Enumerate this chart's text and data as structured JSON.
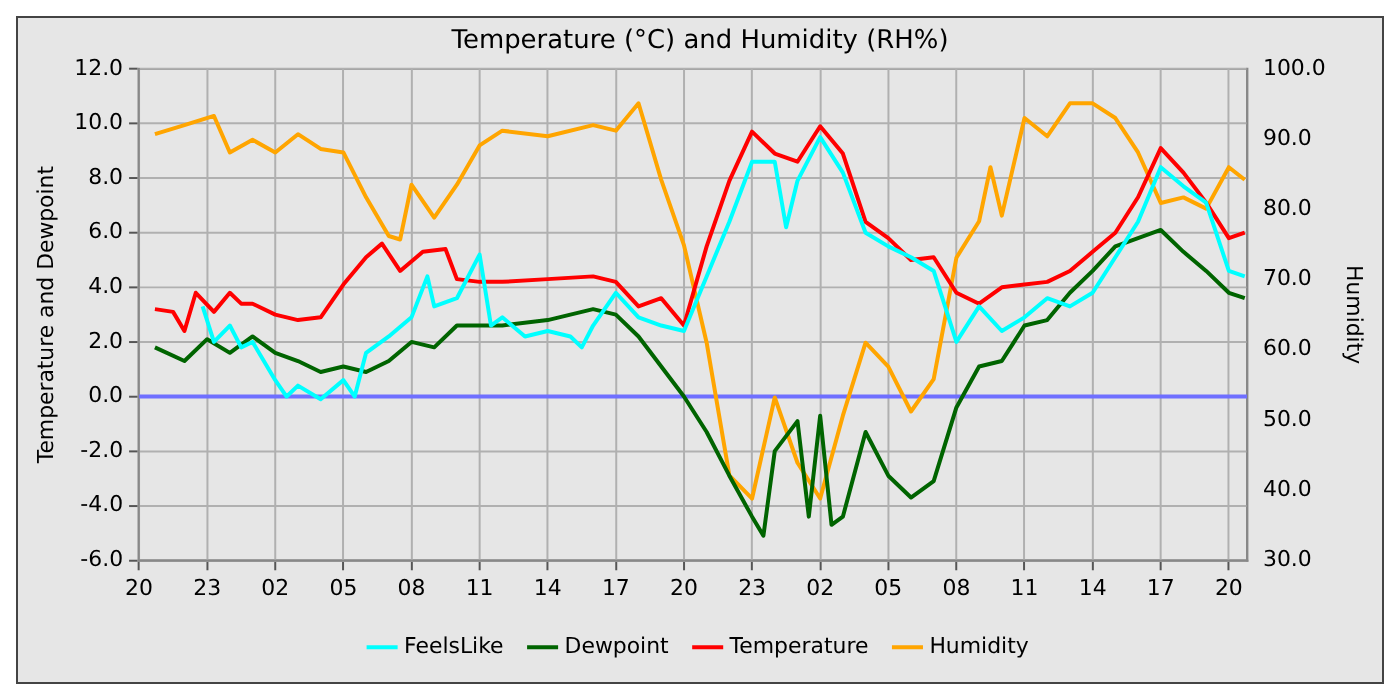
{
  "chart_data": {
    "type": "line",
    "title": "Temperature (°C) and Humidity (RH%)",
    "ylabel": "Temperature and Dewpoint",
    "y2label": "Humidity",
    "xlim": [
      "--01-01T20:00",
      "--01-03T20:48"
    ],
    "xticks": [
      {
        "value": "--01-01T20:00",
        "label": "20"
      },
      {
        "value": "--01-01T23:00",
        "label": "23"
      },
      {
        "value": "--01-02T02:00",
        "label": "02"
      },
      {
        "value": "--01-02T05:00",
        "label": "05"
      },
      {
        "value": "--01-02T08:00",
        "label": "08"
      },
      {
        "value": "--01-02T11:00",
        "label": "11"
      },
      {
        "value": "--01-02T14:00",
        "label": "14"
      },
      {
        "value": "--01-02T17:00",
        "label": "17"
      },
      {
        "value": "--01-02T20:00",
        "label": "20"
      },
      {
        "value": "--01-02T23:00",
        "label": "23"
      },
      {
        "value": "--01-03T02:00",
        "label": "02"
      },
      {
        "value": "--01-03T05:00",
        "label": "05"
      },
      {
        "value": "--01-03T08:00",
        "label": "08"
      },
      {
        "value": "--01-03T11:00",
        "label": "11"
      },
      {
        "value": "--01-03T14:00",
        "label": "14"
      },
      {
        "value": "--01-03T17:00",
        "label": "17"
      },
      {
        "value": "--01-03T20:00",
        "label": "20"
      }
    ],
    "ylim": [
      -6,
      12
    ],
    "yticks": [
      {
        "value": -6,
        "label": "-6.0"
      },
      {
        "value": -4,
        "label": "-4.0"
      },
      {
        "value": -2,
        "label": "-2.0"
      },
      {
        "value": 0,
        "label": "0.0"
      },
      {
        "value": 2,
        "label": "2.0"
      },
      {
        "value": 4,
        "label": "4.0"
      },
      {
        "value": 6,
        "label": "6.0"
      },
      {
        "value": 8,
        "label": "8.0"
      },
      {
        "value": 10,
        "label": "10.0"
      },
      {
        "value": 12,
        "label": "12.0"
      }
    ],
    "y2lim": [
      30,
      100
    ],
    "y2ticks": [
      {
        "value": 30,
        "label": "30.0"
      },
      {
        "value": 40,
        "label": "40.0"
      },
      {
        "value": 50,
        "label": "50.0"
      },
      {
        "value": 60,
        "label": "60.0"
      },
      {
        "value": 70,
        "label": "70.0"
      },
      {
        "value": 80,
        "label": "80.0"
      },
      {
        "value": 90,
        "label": "90.0"
      },
      {
        "value": 100,
        "label": "100.0"
      }
    ],
    "grid": true,
    "legend": "bottom",
    "marker": "none",
    "ref_lines": [
      {
        "axis": "y",
        "value": 0,
        "color": "#6f6fff"
      }
    ],
    "series": [
      {
        "name": "FeelsLike",
        "color": "#00ffff",
        "x": [
          "--01-01T22:48",
          "--01-01T23:18",
          "--01-02T00:00",
          "--01-02T00:30",
          "--01-02T01:00",
          "--01-02T02:00",
          "--01-02T02:30",
          "--01-02T03:00",
          "--01-02T04:00",
          "--01-02T05:00",
          "--01-02T05:30",
          "--01-02T06:00",
          "--01-02T07:00",
          "--01-02T08:00",
          "--01-02T08:42",
          "--01-02T09:00",
          "--01-02T10:00",
          "--01-02T11:00",
          "--01-02T11:30",
          "--01-02T12:00",
          "--01-02T13:00",
          "--01-02T14:00",
          "--01-02T15:00",
          "--01-02T15:30",
          "--01-02T16:00",
          "--01-02T17:00",
          "--01-02T18:00",
          "--01-02T19:00",
          "--01-02T20:00",
          "--01-02T21:00",
          "--01-02T22:00",
          "--01-02T23:00",
          "--01-03T00:00",
          "--01-03T00:30",
          "--01-03T01:00",
          "--01-03T02:00",
          "--01-03T03:00",
          "--01-03T04:00",
          "--01-03T05:00",
          "--01-03T06:00",
          "--01-03T07:00",
          "--01-03T08:00",
          "--01-03T09:00",
          "--01-03T10:00",
          "--01-03T11:00",
          "--01-03T12:00",
          "--01-03T13:00",
          "--01-03T14:00",
          "--01-03T15:00",
          "--01-03T16:00",
          "--01-03T17:00",
          "--01-03T18:00",
          "--01-03T19:00",
          "--01-03T20:00",
          "--01-03T20:42"
        ],
        "values": [
          3.3,
          2.0,
          2.6,
          1.8,
          2.0,
          0.6,
          0,
          0.4,
          -0.1,
          0.6,
          0,
          1.6,
          2.2,
          2.9,
          4.4,
          3.3,
          3.6,
          5.2,
          2.6,
          2.9,
          2.2,
          2.4,
          2.2,
          1.8,
          2.6,
          3.8,
          2.9,
          2.6,
          2.4,
          4.4,
          6.4,
          8.6,
          8.6,
          6.2,
          7.9,
          9.5,
          8.2,
          6.0,
          5.5,
          5.1,
          4.6,
          2.0,
          3.3,
          2.4,
          2.9,
          3.6,
          3.3,
          3.8,
          5.1,
          6.4,
          8.4,
          7.7,
          7.1,
          4.6,
          4.4
        ]
      },
      {
        "name": "Dewpoint",
        "color": "#006400",
        "x": [
          "--01-01T20:42",
          "--01-01T22:00",
          "--01-01T23:00",
          "--01-02T00:00",
          "--01-02T01:00",
          "--01-02T02:00",
          "--01-02T03:00",
          "--01-02T04:00",
          "--01-02T05:00",
          "--01-02T06:00",
          "--01-02T07:00",
          "--01-02T08:00",
          "--01-02T09:00",
          "--01-02T10:00",
          "--01-02T11:00",
          "--01-02T12:00",
          "--01-02T14:00",
          "--01-02T16:00",
          "--01-02T17:00",
          "--01-02T18:00",
          "--01-02T19:00",
          "--01-02T20:00",
          "--01-02T21:00",
          "--01-02T22:00",
          "--01-02T23:00",
          "--01-02T23:30",
          "--01-03T00:00",
          "--01-03T01:00",
          "--01-03T01:30",
          "--01-03T02:00",
          "--01-03T02:30",
          "--01-03T03:00",
          "--01-03T04:00",
          "--01-03T05:00",
          "--01-03T06:00",
          "--01-03T07:00",
          "--01-03T08:00",
          "--01-03T09:00",
          "--01-03T10:00",
          "--01-03T11:00",
          "--01-03T12:00",
          "--01-03T13:00",
          "--01-03T14:00",
          "--01-03T15:00",
          "--01-03T16:00",
          "--01-03T17:00",
          "--01-03T18:00",
          "--01-03T19:00",
          "--01-03T20:00",
          "--01-03T20:42"
        ],
        "values": [
          1.8,
          1.3,
          2.1,
          1.6,
          2.2,
          1.6,
          1.3,
          0.9,
          1.1,
          0.9,
          1.3,
          2.0,
          1.8,
          2.6,
          2.6,
          2.6,
          2.8,
          3.2,
          3.0,
          2.2,
          1.1,
          0,
          -1.3,
          -2.9,
          -4.4,
          -5.1,
          -2.0,
          -0.9,
          -4.4,
          -0.7,
          -4.7,
          -4.4,
          -1.3,
          -2.9,
          -3.7,
          -3.1,
          -0.4,
          1.1,
          1.3,
          2.6,
          2.8,
          3.8,
          4.6,
          5.5,
          5.8,
          6.1,
          5.3,
          4.6,
          3.8,
          3.6
        ]
      },
      {
        "name": "Temperature",
        "color": "#ff0000",
        "x": [
          "--01-01T20:42",
          "--01-01T21:30",
          "--01-01T22:00",
          "--01-01T22:30",
          "--01-01T23:18",
          "--01-02T00:00",
          "--01-02T00:30",
          "--01-02T01:00",
          "--01-02T02:00",
          "--01-02T03:00",
          "--01-02T04:00",
          "--01-02T05:00",
          "--01-02T06:00",
          "--01-02T06:42",
          "--01-02T07:30",
          "--01-02T08:30",
          "--01-02T09:30",
          "--01-02T10:00",
          "--01-02T11:00",
          "--01-02T12:00",
          "--01-02T14:00",
          "--01-02T16:00",
          "--01-02T17:00",
          "--01-02T18:00",
          "--01-02T19:00",
          "--01-02T20:00",
          "--01-02T21:00",
          "--01-02T22:00",
          "--01-02T23:00",
          "--01-03T00:00",
          "--01-03T01:00",
          "--01-03T02:00",
          "--01-03T03:00",
          "--01-03T04:00",
          "--01-03T05:00",
          "--01-03T06:00",
          "--01-03T07:00",
          "--01-03T08:00",
          "--01-03T09:00",
          "--01-03T10:00",
          "--01-03T11:00",
          "--01-03T12:00",
          "--01-03T13:00",
          "--01-03T14:00",
          "--01-03T15:00",
          "--01-03T16:00",
          "--01-03T17:00",
          "--01-03T18:00",
          "--01-03T19:00",
          "--01-03T20:00",
          "--01-03T20:42"
        ],
        "values": [
          3.2,
          3.1,
          2.4,
          3.8,
          3.1,
          3.8,
          3.4,
          3.4,
          3.0,
          2.8,
          2.9,
          4.1,
          5.1,
          5.6,
          4.6,
          5.3,
          5.4,
          4.3,
          4.2,
          4.2,
          4.3,
          4.4,
          4.2,
          3.3,
          3.6,
          2.6,
          5.5,
          7.9,
          9.7,
          8.9,
          8.6,
          9.9,
          8.9,
          6.4,
          5.8,
          5.0,
          5.1,
          3.8,
          3.4,
          4.0,
          4.1,
          4.2,
          4.6,
          5.3,
          6.0,
          7.3,
          9.1,
          8.2,
          7.1,
          5.8,
          6.0
        ]
      },
      {
        "name": "Humidity",
        "color": "#ffa500",
        "axis": "y2",
        "x": [
          "--01-01T20:42",
          "--01-01T22:00",
          "--01-01T23:18",
          "--01-02T00:00",
          "--01-02T01:00",
          "--01-02T02:00",
          "--01-02T03:00",
          "--01-02T04:00",
          "--01-02T05:00",
          "--01-02T06:00",
          "--01-02T07:00",
          "--01-02T07:30",
          "--01-02T08:00",
          "--01-02T09:00",
          "--01-02T10:00",
          "--01-02T11:00",
          "--01-02T12:00",
          "--01-02T14:00",
          "--01-02T16:00",
          "--01-02T17:00",
          "--01-02T18:00",
          "--01-02T19:00",
          "--01-02T20:00",
          "--01-02T21:00",
          "--01-02T22:00",
          "--01-02T23:00",
          "--01-03T00:00",
          "--01-03T01:00",
          "--01-03T02:00",
          "--01-03T03:00",
          "--01-03T04:00",
          "--01-03T05:00",
          "--01-03T06:00",
          "--01-03T07:00",
          "--01-03T08:00",
          "--01-03T09:00",
          "--01-03T09:30",
          "--01-03T10:00",
          "--01-03T11:00",
          "--01-03T12:00",
          "--01-03T13:00",
          "--01-03T14:00",
          "--01-03T15:00",
          "--01-03T16:00",
          "--01-03T17:00",
          "--01-03T18:00",
          "--01-03T19:00",
          "--01-03T20:00",
          "--01-03T20:42"
        ],
        "values": [
          90.7,
          92,
          93.3,
          88.1,
          89.9,
          88.1,
          90.7,
          88.6,
          88.1,
          81.7,
          76.2,
          75.7,
          83.5,
          78.8,
          83.5,
          89.1,
          91.2,
          90.4,
          92,
          91.2,
          95.1,
          84.2,
          74.9,
          61,
          42.1,
          38.8,
          53.2,
          43.9,
          38.8,
          50.6,
          61,
          57.6,
          51.2,
          55.8,
          73.1,
          78.3,
          86,
          79.1,
          93,
          90.4,
          95.1,
          95.1,
          93,
          88.1,
          80.9,
          81.7,
          80.1,
          86,
          84.2
        ]
      }
    ]
  }
}
